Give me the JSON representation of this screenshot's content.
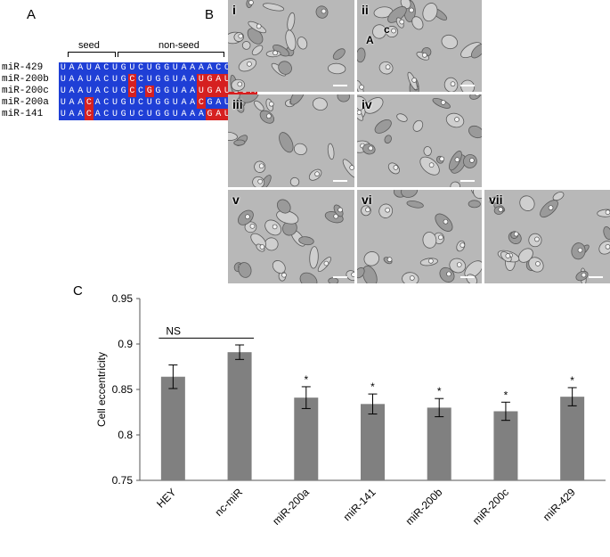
{
  "panels": {
    "a": "A",
    "b": "B",
    "c": "C"
  },
  "panel_a": {
    "seed_label": "seed",
    "nonseed_label": "non-seed",
    "rows": [
      {
        "name": "miR-429",
        "seq": "UAAUACUGUCUGGUAAAACCGU-",
        "colors": "bbbbbbbbbbbbbbbbbbbbbbw"
      },
      {
        "name": "miR-200b",
        "seq": "UAAUACUGCCUGGUAAUGAUGA-",
        "colors": "bbbbbbbbrbbbbbbbrrrrrrw"
      },
      {
        "name": "miR-200c",
        "seq": "UAAUACUGCCGGGUAAUGAUGGA",
        "colors": "bbbbbbbbrbrbbbbbrrrrrrr"
      },
      {
        "name": "miR-200a",
        "seq": "UAACACUGUCUGGUAACGAUGU-",
        "colors": "bbbrbbbbbbbbbbbbrbbbbbw"
      },
      {
        "name": "miR-141",
        "seq": "UAACACUGUCUGGUAAAGAUGG-",
        "colors": "bbbrbbbbbbbbbbbbbrrrrrw"
      }
    ]
  },
  "panel_b": {
    "images": [
      {
        "label": "i"
      },
      {
        "label": "ii",
        "annotations": [
          "A",
          "c"
        ]
      },
      {
        "label": "iii"
      },
      {
        "label": "iv"
      },
      {
        "label": "v"
      },
      {
        "label": "vi"
      },
      {
        "label": "vii"
      }
    ]
  },
  "chart_data": {
    "type": "bar",
    "categories": [
      "HEY",
      "nc-miR",
      "miR-200a",
      "miR-141",
      "miR-200b",
      "miR-200c",
      "miR-429"
    ],
    "values": [
      0.864,
      0.891,
      0.841,
      0.834,
      0.83,
      0.826,
      0.842
    ],
    "errors": [
      0.013,
      0.008,
      0.012,
      0.011,
      0.01,
      0.01,
      0.01
    ],
    "significance": [
      "",
      "",
      "*",
      "*",
      "*",
      "*",
      "*"
    ],
    "bracket": {
      "from": "HEY",
      "to": "nc-miR",
      "label": "NS"
    },
    "ylabel": "Cell eccentricity",
    "ylim": [
      0.75,
      0.95
    ],
    "yticks": [
      "0.75",
      "0.8",
      "0.85",
      "0.9",
      "0.95"
    ],
    "bar_color": "#808080",
    "grid": false
  }
}
